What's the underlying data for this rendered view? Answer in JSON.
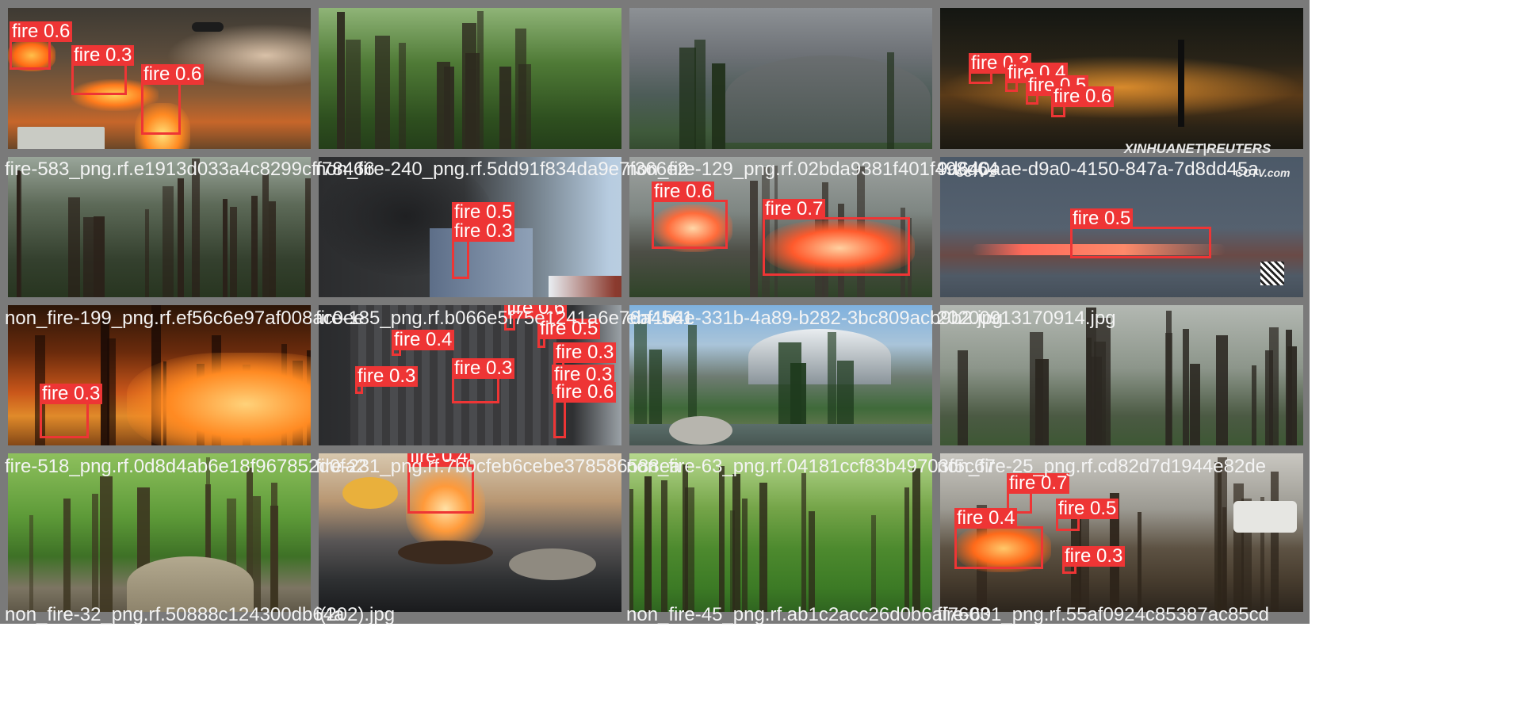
{
  "tiles": [
    {
      "caption": "fire-583_png.rf.e1913d033a4c8299cff78466",
      "theme": "fire-helicopter",
      "detections": [
        {
          "label": "fire 0.6"
        },
        {
          "label": "fire 0.3"
        },
        {
          "label": "fire 0.6"
        }
      ]
    },
    {
      "caption": "non_fire-240_png.rf.5dd91f834da9e7f366e2",
      "theme": "green-forest",
      "detections": []
    },
    {
      "caption": "non_fire-129_png.rf.02bda9381f401f498d64",
      "theme": "mountain-valley",
      "detections": []
    },
    {
      "caption": "9d640aae-d9a0-4150-847a-7d8dd45a",
      "theme": "night-fire",
      "watermark": "XINHUANET|REUTERS",
      "detections": [
        {
          "label": "fire 0.3"
        },
        {
          "label": "fire 0.4"
        },
        {
          "label": "fire 0.5"
        },
        {
          "label": "fire 0.6"
        }
      ]
    },
    {
      "caption": "non_fire-199_png.rf.ef56c6e97af008ac0ee",
      "theme": "dark-forest",
      "detections": []
    },
    {
      "caption": "fire-185_png.rf.b066e5f75e1241a6e76a4561",
      "theme": "smoke-building",
      "detections": [
        {
          "label": "fire 0.5"
        },
        {
          "label": "fire 0.3"
        }
      ]
    },
    {
      "caption": "ebf1b4e-331b-4a89-b282-3bc809acb9b2.jpg",
      "theme": "wildfire-line",
      "detections": [
        {
          "label": "fire 0.6"
        },
        {
          "label": "fire 0.7"
        }
      ]
    },
    {
      "caption": "20200913170914.jpg",
      "theme": "tv-fire",
      "watermark": "CCTV 2",
      "watermark2": "CCTV.com",
      "detections": [
        {
          "label": "fire 0.5"
        }
      ]
    },
    {
      "caption": "fire-518_png.rf.0d8d4ab6e18f967852d0fa2",
      "theme": "orange-forest-fire",
      "detections": [
        {
          "label": "fire 0.3"
        }
      ]
    },
    {
      "caption": "fire-231_png.rf.7b0cfeb6cebe378586588ea",
      "theme": "tower-fire",
      "detections": [
        {
          "label": "fire 0.6"
        },
        {
          "label": "fire 0.4"
        },
        {
          "label": "fire 0.5"
        },
        {
          "label": "fire 0.3"
        },
        {
          "label": "fire 0.3"
        },
        {
          "label": "fire 0.3"
        },
        {
          "label": "fire 0.3"
        },
        {
          "label": "fire 0.6"
        }
      ]
    },
    {
      "caption": "non_fire-63_png.rf.04181ccf83b49703f5c67",
      "theme": "alpine-lake",
      "detections": []
    },
    {
      "caption": "non_fire-25_png.rf.cd82d7d1944e82de",
      "theme": "misty-forest",
      "detections": []
    },
    {
      "caption": "non_fire-32_png.rf.50888c124300db64a",
      "theme": "forest-path",
      "detections": []
    },
    {
      "caption": "i(202).jpg",
      "theme": "kitchen-flame",
      "detections": [
        {
          "label": "fire 0.4"
        }
      ]
    },
    {
      "caption": "non_fire-45_png.rf.ab1c2acc26d0b6af7603",
      "theme": "summer-forest",
      "detections": []
    },
    {
      "caption": "fire-601_png.rf.55af0924c85387ac85cd",
      "theme": "burnt-forest",
      "detections": [
        {
          "label": "fire 0.7"
        },
        {
          "label": "fire 0.5"
        },
        {
          "label": "fire 0.4"
        },
        {
          "label": "fire 0.3"
        }
      ]
    }
  ],
  "colors": {
    "box": "#ee3535",
    "frame": "#7a7a7a",
    "caption": "#f4f4f4"
  }
}
